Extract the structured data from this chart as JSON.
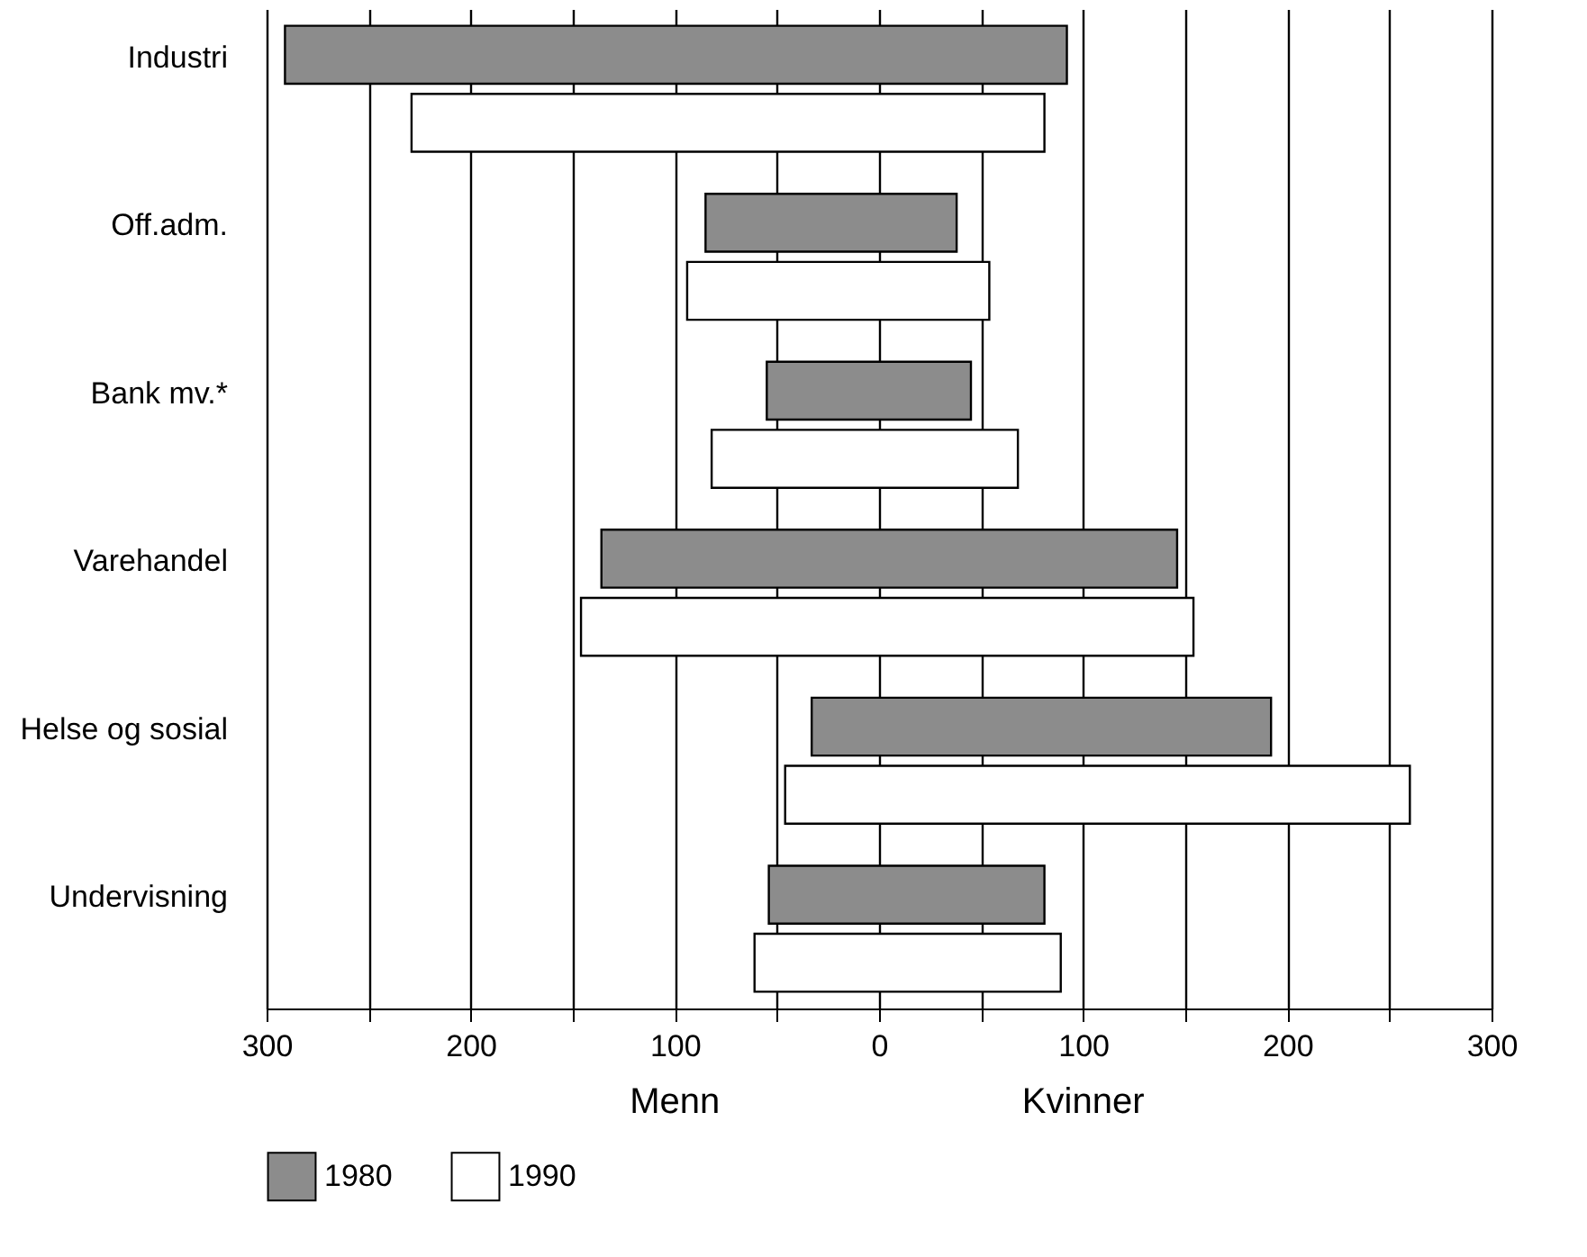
{
  "chart_data": {
    "type": "bar",
    "orientation": "horizontal",
    "categories": [
      "Industri",
      "Off.adm.",
      "Bank mv.*",
      "Varehandel",
      "Helse og sosial",
      "Undervisning"
    ],
    "series": [
      {
        "name": "1980",
        "color": "#8c8c8c",
        "base": [
          -291,
          -85,
          -55,
          -136,
          -33,
          -54
        ],
        "values": [
          383,
          123,
          100,
          282,
          225,
          135
        ]
      },
      {
        "name": "1990",
        "color": "#ffffff",
        "base": [
          -229,
          -94,
          -82,
          -146,
          -46,
          -61
        ],
        "values": [
          310,
          148,
          150,
          300,
          306,
          150
        ]
      }
    ],
    "xlim": [
      -300,
      300
    ],
    "xticks": [
      {
        "value": -300,
        "label": "300"
      },
      {
        "value": -250,
        "label": null
      },
      {
        "value": -200,
        "label": "200"
      },
      {
        "value": -150,
        "label": null
      },
      {
        "value": -100,
        "label": "100"
      },
      {
        "value": -50,
        "label": null
      },
      0,
      {
        "value": 50,
        "label": null
      },
      100,
      {
        "value": 150,
        "label": null
      },
      200,
      {
        "value": 250,
        "label": null
      },
      300
    ],
    "grid": "x",
    "legend": "bottom",
    "annotations": [
      "Menn",
      "Kvinner"
    ]
  }
}
